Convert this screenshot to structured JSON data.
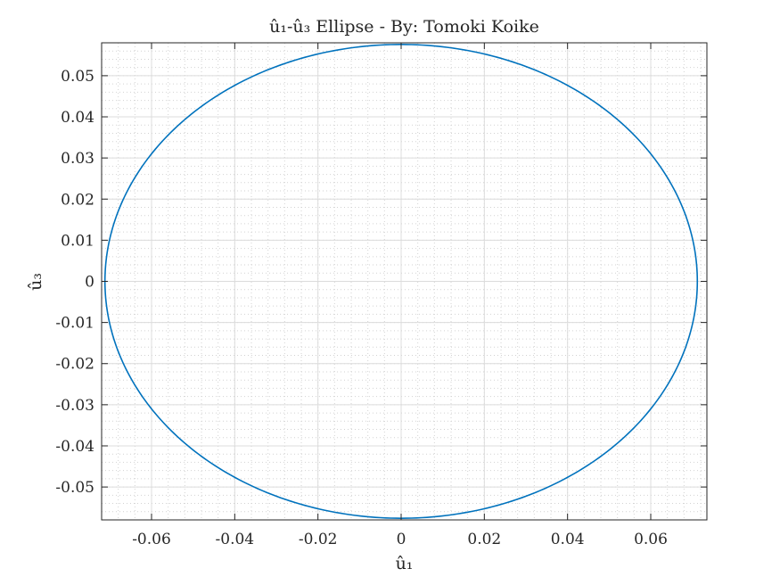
{
  "chart_data": {
    "type": "line",
    "title": "û₁-û₃ Ellipse - By: Tomoki Koike",
    "xlabel": "û₁",
    "ylabel": "û₃",
    "xlim": [
      -0.072,
      0.0735
    ],
    "ylim": [
      -0.058,
      0.058
    ],
    "x_ticks": [
      -0.06,
      -0.04,
      -0.02,
      0,
      0.02,
      0.04,
      0.06
    ],
    "x_tick_labels": [
      "-0.06",
      "-0.04",
      "-0.02",
      "0",
      "0.02",
      "0.04",
      "0.06"
    ],
    "y_ticks": [
      0.05,
      0.04,
      0.03,
      0.02,
      0.01,
      0,
      -0.01,
      -0.02,
      -0.03,
      -0.04,
      -0.05
    ],
    "y_tick_labels": [
      "0.05",
      "0.04",
      "0.03",
      "0.02",
      "0.01",
      "0",
      "-0.01",
      "-0.02",
      "-0.03",
      "-0.04",
      "-0.05"
    ],
    "grid": true,
    "minor_grid": true,
    "series": [
      {
        "shape": "ellipse",
        "color": "#0072bd",
        "center": [
          0,
          0
        ],
        "semi_axis_x": 0.0712,
        "semi_axis_y": 0.0576
      }
    ]
  }
}
